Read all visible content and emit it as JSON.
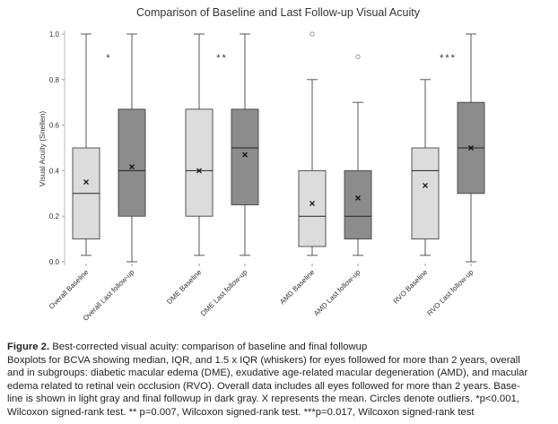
{
  "chart_data": {
    "type": "box",
    "title": "Comparison of Baseline and Last Follow-up Visual Acuity",
    "ylabel": "Visual Acuity (Snellen)",
    "categories": [
      "Overall Baseline",
      "Overall Last follow-up",
      "DME Baseline",
      "DME Last follow-up",
      "AMD Baseline",
      "AMD Last follow-up",
      "RVO Baseline",
      "RVO Last follow-up"
    ],
    "colors": [
      "#dcdcdc",
      "#8c8c8c",
      "#dcdcdc",
      "#8c8c8c",
      "#dcdcdc",
      "#8c8c8c",
      "#dcdcdc",
      "#8c8c8c"
    ],
    "boxes": [
      {
        "whisker_low": 0.028,
        "q1": 0.1,
        "median": 0.3,
        "q3": 0.5,
        "whisker_high": 1.0,
        "mean": 0.35,
        "outliers": []
      },
      {
        "whisker_low": 0.0,
        "q1": 0.2,
        "median": 0.4,
        "q3": 0.67,
        "whisker_high": 1.0,
        "mean": 0.417,
        "outliers": []
      },
      {
        "whisker_low": 0.028,
        "q1": 0.2,
        "median": 0.4,
        "q3": 0.67,
        "whisker_high": 1.0,
        "mean": 0.4,
        "outliers": []
      },
      {
        "whisker_low": 0.028,
        "q1": 0.25,
        "median": 0.5,
        "q3": 0.67,
        "whisker_high": 1.0,
        "mean": 0.47,
        "outliers": []
      },
      {
        "whisker_low": 0.028,
        "q1": 0.067,
        "median": 0.2,
        "q3": 0.4,
        "whisker_high": 0.8,
        "mean": 0.256,
        "outliers": [
          1.0
        ]
      },
      {
        "whisker_low": 0.028,
        "q1": 0.1,
        "median": 0.2,
        "q3": 0.4,
        "whisker_high": 0.7,
        "mean": 0.28,
        "outliers": [
          0.9
        ]
      },
      {
        "whisker_low": 0.028,
        "q1": 0.1,
        "median": 0.4,
        "q3": 0.5,
        "whisker_high": 0.8,
        "mean": 0.335,
        "outliers": []
      },
      {
        "whisker_low": 0.0,
        "q1": 0.3,
        "median": 0.5,
        "q3": 0.7,
        "whisker_high": 1.0,
        "mean": 0.5,
        "outliers": []
      }
    ],
    "significance": [
      "*",
      "**",
      null,
      "***"
    ],
    "ylim": [
      0,
      1.0
    ],
    "yticks": [
      {
        "value": 0,
        "label": "0.0"
      },
      0.2,
      0.4,
      0.6,
      0.8,
      {
        "value": 1.0,
        "label": "1.0"
      }
    ]
  },
  "caption": {
    "label": "Figure 2.",
    "title": "Best-corrected visual acuity: comparison of baseline and final followup",
    "lines": [
      "Boxplots for BCVA showing median, IQR, and 1.5 x IQR (whiskers) for eyes followed for more than 2 years, overall",
      "and in subgroups: diabetic macular edema (DME), exudative age-related macular degeneration (AMD), and macular",
      "edema related to retinal vein occlusion (RVO). Overall data includes all eyes followed for more than 2 years. Base-",
      "line is shown in light gray and final followup in dark gray. X represents the mean. Circles denote outliers. *p<0.001,",
      "Wilcoxon signed-rank test. ** p=0.007, Wilcoxon signed-rank test. ***p=0.017, Wilcoxon signed-rank test"
    ]
  }
}
